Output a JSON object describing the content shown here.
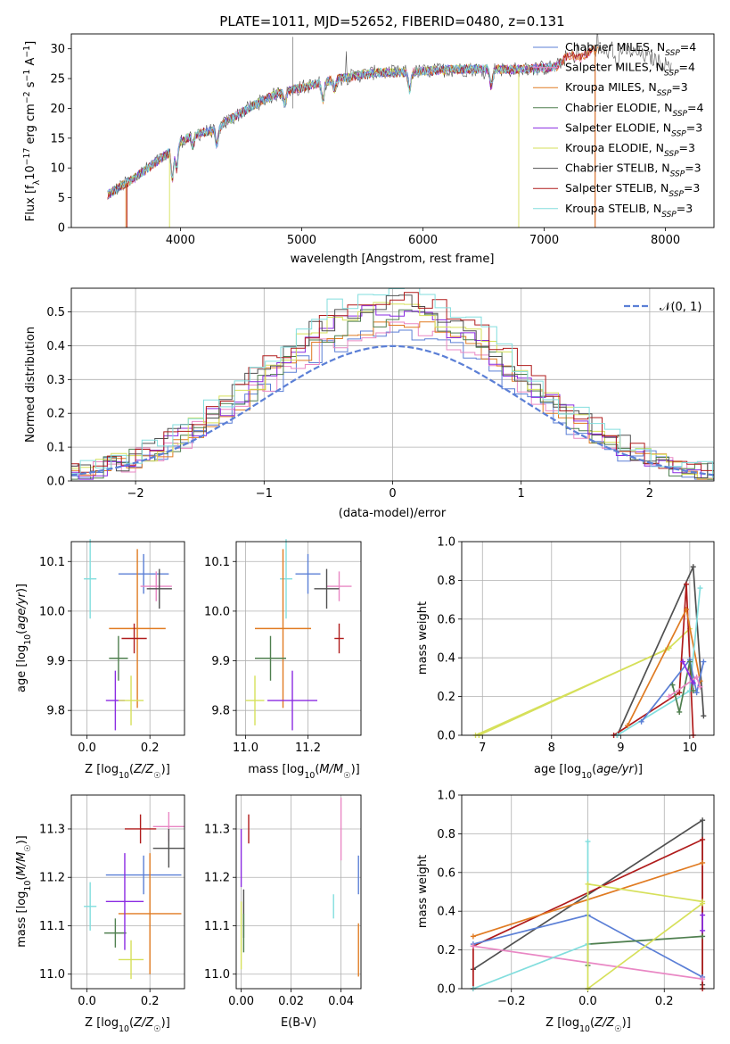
{
  "figure_title": "PLATE=1011, MJD=52652, FIBERID=0480, z=0.131",
  "colors": {
    "blue": "#5b7fd6",
    "orange": "#e07b22",
    "green": "#4f7f4f",
    "purple": "#8a2be2",
    "pink": "#e987c4",
    "yellow": "#d6e05a",
    "gray": "#505050",
    "red": "#b01c1c",
    "cyan": "#82dede"
  },
  "chart_data": [
    {
      "id": "spectrum",
      "type": "line",
      "title": "PLATE=1011, MJD=52652, FIBERID=0480, z=0.131",
      "xlabel": "wavelength [Angstrom, rest frame]",
      "ylabel": "Flux [f_λ 10^-17 erg cm^-2 s^-1 A^-1]",
      "xlim": [
        3100,
        8400
      ],
      "ylim": [
        0,
        32.5
      ],
      "xticks": [
        4000,
        5000,
        6000,
        7000,
        8000
      ],
      "yticks": [
        0,
        5,
        10,
        15,
        20,
        25,
        30
      ],
      "grid": false,
      "legend_position": "top-right",
      "legend": [
        {
          "label": "Chabrier MILES, N_SSP=4",
          "color": "blue"
        },
        {
          "label": "Salpeter MILES, N_SSP=4",
          "color": "pink"
        },
        {
          "label": "Kroupa MILES, N_SSP=3",
          "color": "orange"
        },
        {
          "label": "Chabrier ELODIE, N_SSP=4",
          "color": "green"
        },
        {
          "label": "Salpeter ELODIE, N_SSP=3",
          "color": "purple"
        },
        {
          "label": "Kroupa ELODIE, N_SSP=3",
          "color": "yellow"
        },
        {
          "label": "Chabrier STELIB, N_SSP=3",
          "color": "gray"
        },
        {
          "label": "Salpeter STELIB, N_SSP=3",
          "color": "red"
        },
        {
          "label": "Kroupa STELIB, N_SSP=3",
          "color": "cyan"
        }
      ],
      "continuum": [
        [
          3400,
          5.5
        ],
        [
          3500,
          6.8
        ],
        [
          3600,
          8
        ],
        [
          3700,
          9.5
        ],
        [
          3800,
          11
        ],
        [
          3900,
          12.5
        ],
        [
          4000,
          14.5
        ],
        [
          4100,
          15.5
        ],
        [
          4200,
          16
        ],
        [
          4300,
          16.5
        ],
        [
          4400,
          18
        ],
        [
          4600,
          20.5
        ],
        [
          4800,
          22.5
        ],
        [
          5000,
          23.5
        ],
        [
          5200,
          24.5
        ],
        [
          5400,
          25.3
        ],
        [
          5600,
          26
        ],
        [
          5800,
          26
        ],
        [
          6000,
          26.2
        ],
        [
          6200,
          26.5
        ],
        [
          6400,
          26.6
        ],
        [
          6600,
          26.6
        ],
        [
          6800,
          26.5
        ],
        [
          7000,
          26.8
        ],
        [
          7100,
          27
        ],
        [
          7200,
          29
        ],
        [
          7300,
          28.5
        ],
        [
          7400,
          29.8
        ],
        [
          7500,
          29.3
        ],
        [
          7600,
          30
        ],
        [
          7800,
          29
        ],
        [
          8000,
          27.5
        ],
        [
          8200,
          27
        ]
      ]
    },
    {
      "id": "residuals",
      "type": "histogram",
      "xlabel": "(data-model)/error",
      "ylabel": "Normed distribution",
      "xlim": [
        -2.5,
        2.5
      ],
      "ylim": [
        0,
        0.57
      ],
      "xticks": [
        -2,
        -1,
        0,
        1,
        2
      ],
      "yticks": [
        0.0,
        0.1,
        0.2,
        0.3,
        0.4,
        0.5
      ],
      "grid": true,
      "legend_position": "top-right",
      "reference_label": "𝒩(0, 1)",
      "reference_color": "blue"
    },
    {
      "id": "age_vs_Z",
      "type": "scatter",
      "xlabel": "Z [log10(Z/Z☉)]",
      "ylabel": "age  [log10(age/yr)]",
      "xlim": [
        -0.05,
        0.31
      ],
      "ylim": [
        9.75,
        10.14
      ],
      "xticks": [
        0.0,
        0.2
      ],
      "yticks": [
        9.8,
        9.9,
        10.0,
        10.1
      ],
      "grid": true,
      "points": [
        {
          "color": "cyan",
          "x": 0.01,
          "y": 10.065,
          "xerr": 0.02,
          "yerr": 0.08
        },
        {
          "color": "blue",
          "x": 0.18,
          "y": 10.075,
          "xerr": 0.08,
          "yerr": 0.04
        },
        {
          "color": "pink",
          "x": 0.22,
          "y": 10.05,
          "xerr": 0.05,
          "yerr": 0.03
        },
        {
          "color": "gray",
          "x": 0.23,
          "y": 10.045,
          "xerr": 0.04,
          "yerr": 0.04
        },
        {
          "color": "orange",
          "x": 0.16,
          "y": 9.965,
          "xerr": 0.09,
          "yerr": 0.16
        },
        {
          "color": "red",
          "x": 0.15,
          "y": 9.945,
          "xerr": 0.04,
          "yerr": 0.03
        },
        {
          "color": "green",
          "x": 0.1,
          "y": 9.905,
          "xerr": 0.03,
          "yerr": 0.045
        },
        {
          "color": "purple",
          "x": 0.09,
          "y": 9.82,
          "xerr": 0.03,
          "yerr": 0.06
        },
        {
          "color": "yellow",
          "x": 0.14,
          "y": 9.82,
          "xerr": 0.04,
          "yerr": 0.05
        }
      ]
    },
    {
      "id": "age_vs_mass",
      "type": "scatter",
      "xlabel": "mass [log10(M/M☉)]",
      "ylabel": "",
      "xlim": [
        10.97,
        11.37
      ],
      "ylim": [
        9.75,
        10.14
      ],
      "xticks": [
        11.0,
        11.2
      ],
      "yticks": [
        9.8,
        9.9,
        10.0,
        10.1
      ],
      "grid": true,
      "points": [
        {
          "color": "cyan",
          "x": 11.13,
          "y": 10.065,
          "xerr": 0.02,
          "yerr": 0.08
        },
        {
          "color": "blue",
          "x": 11.2,
          "y": 10.075,
          "xerr": 0.04,
          "yerr": 0.04
        },
        {
          "color": "pink",
          "x": 11.3,
          "y": 10.05,
          "xerr": 0.04,
          "yerr": 0.03
        },
        {
          "color": "gray",
          "x": 11.26,
          "y": 10.045,
          "xerr": 0.04,
          "yerr": 0.04
        },
        {
          "color": "orange",
          "x": 11.12,
          "y": 9.965,
          "xerr": 0.09,
          "yerr": 0.16
        },
        {
          "color": "red",
          "x": 11.3,
          "y": 9.945,
          "xerr": 0.015,
          "yerr": 0.03
        },
        {
          "color": "green",
          "x": 11.08,
          "y": 9.905,
          "xerr": 0.05,
          "yerr": 0.045
        },
        {
          "color": "purple",
          "x": 11.15,
          "y": 9.82,
          "xerr": 0.08,
          "yerr": 0.06
        },
        {
          "color": "yellow",
          "x": 11.03,
          "y": 9.82,
          "xerr": 0.03,
          "yerr": 0.05
        }
      ]
    },
    {
      "id": "weight_vs_age",
      "type": "line",
      "xlabel": "age  [log10(age/yr)]",
      "ylabel": "mass weight",
      "xlim": [
        6.7,
        10.35
      ],
      "ylim": [
        0,
        1
      ],
      "xticks": [
        7,
        8,
        9,
        10
      ],
      "yticks": [
        0.0,
        0.2,
        0.4,
        0.6,
        0.8,
        1.0
      ],
      "grid": true,
      "series": [
        {
          "color": "yellow",
          "points": [
            [
              6.95,
              0.0
            ],
            [
              9.7,
              0.45
            ],
            [
              10.0,
              0.55
            ]
          ]
        },
        {
          "color": "yellow",
          "points": [
            [
              6.9,
              0.0
            ],
            [
              9.65,
              0.44
            ]
          ]
        },
        {
          "color": "gray",
          "points": [
            [
              8.95,
              0.0
            ],
            [
              10.05,
              0.87
            ],
            [
              10.2,
              0.1
            ]
          ]
        },
        {
          "color": "red",
          "points": [
            [
              8.9,
              0.0
            ],
            [
              9.85,
              0.22
            ],
            [
              9.95,
              0.78
            ],
            [
              10.05,
              0.0
            ]
          ]
        },
        {
          "color": "orange",
          "points": [
            [
              9.1,
              0.05
            ],
            [
              9.95,
              0.65
            ],
            [
              10.15,
              0.28
            ]
          ]
        },
        {
          "color": "cyan",
          "points": [
            [
              8.95,
              0.0
            ],
            [
              10.0,
              0.23
            ],
            [
              10.15,
              0.76
            ]
          ]
        },
        {
          "color": "blue",
          "points": [
            [
              9.3,
              0.07
            ],
            [
              10.0,
              0.39
            ],
            [
              10.1,
              0.22
            ],
            [
              10.2,
              0.38
            ]
          ]
        },
        {
          "color": "green",
          "points": [
            [
              9.75,
              0.26
            ],
            [
              9.85,
              0.12
            ],
            [
              10.0,
              0.38
            ],
            [
              10.05,
              0.23
            ]
          ]
        },
        {
          "color": "pink",
          "points": [
            [
              9.7,
              0.2
            ],
            [
              10.1,
              0.3
            ],
            [
              10.15,
              0.25
            ]
          ]
        },
        {
          "color": "purple",
          "points": [
            [
              9.9,
              0.38
            ],
            [
              10.05,
              0.27
            ]
          ]
        }
      ]
    },
    {
      "id": "mass_vs_Z",
      "type": "scatter",
      "xlabel": "Z [log10(Z/Z☉)]",
      "ylabel": "mass [log10(M/M☉)]",
      "xlim": [
        -0.05,
        0.31
      ],
      "ylim": [
        10.97,
        11.37
      ],
      "xticks": [
        0.0,
        0.2
      ],
      "yticks": [
        11.0,
        11.1,
        11.2,
        11.3
      ],
      "grid": true,
      "points": [
        {
          "color": "cyan",
          "x": 0.01,
          "y": 11.14,
          "xerr": 0.02,
          "yerr": 0.05
        },
        {
          "color": "blue",
          "x": 0.18,
          "y": 11.205,
          "xerr": 0.12,
          "yerr": 0.04
        },
        {
          "color": "pink",
          "x": 0.26,
          "y": 11.305,
          "xerr": 0.05,
          "yerr": 0.03
        },
        {
          "color": "gray",
          "x": 0.26,
          "y": 11.26,
          "xerr": 0.05,
          "yerr": 0.04
        },
        {
          "color": "orange",
          "x": 0.2,
          "y": 11.125,
          "xerr": 0.1,
          "yerr": 0.125
        },
        {
          "color": "red",
          "x": 0.17,
          "y": 11.3,
          "xerr": 0.05,
          "yerr": 0.03
        },
        {
          "color": "green",
          "x": 0.09,
          "y": 11.085,
          "xerr": 0.035,
          "yerr": 0.03
        },
        {
          "color": "purple",
          "x": 0.12,
          "y": 11.15,
          "xerr": 0.06,
          "yerr": 0.1
        },
        {
          "color": "yellow",
          "x": 0.14,
          "y": 11.03,
          "xerr": 0.04,
          "yerr": 0.04
        }
      ]
    },
    {
      "id": "mass_vs_ebv",
      "type": "scatter",
      "xlabel": "E(B-V)",
      "ylabel": "",
      "xlim": [
        -0.002,
        0.048
      ],
      "ylim": [
        10.97,
        11.37
      ],
      "xticks": [
        0.0,
        0.02,
        0.04
      ],
      "yticks": [
        11.0,
        11.1,
        11.2,
        11.3
      ],
      "grid": true,
      "points": [
        {
          "color": "cyan",
          "x": 0.037,
          "y": 11.14,
          "xerr": 0,
          "yerr": 0.025
        },
        {
          "color": "blue",
          "x": 0.047,
          "y": 11.205,
          "xerr": 0,
          "yerr": 0.04
        },
        {
          "color": "pink",
          "x": 0.04,
          "y": 11.3,
          "xerr": 0,
          "yerr": 0.065
        },
        {
          "color": "gray",
          "x": 0.001,
          "y": 11.125,
          "xerr": 0,
          "yerr": 0.05
        },
        {
          "color": "orange",
          "x": 0.047,
          "y": 11.05,
          "xerr": 0,
          "yerr": 0.055
        },
        {
          "color": "red",
          "x": 0.003,
          "y": 11.3,
          "xerr": 0,
          "yerr": 0.03
        },
        {
          "color": "green",
          "x": 0.001,
          "y": 11.085,
          "xerr": 0,
          "yerr": 0.04
        },
        {
          "color": "purple",
          "x": 0.0,
          "y": 11.24,
          "xerr": 0,
          "yerr": 0.06
        },
        {
          "color": "yellow",
          "x": 0.0,
          "y": 11.08,
          "xerr": 0,
          "yerr": 0.07
        }
      ]
    },
    {
      "id": "weight_vs_Z",
      "type": "line",
      "xlabel": "Z [log10(Z/Z☉)]",
      "ylabel": "mass weight",
      "xlim": [
        -0.33,
        0.33
      ],
      "ylim": [
        0,
        1
      ],
      "xticks": [
        -0.2,
        0.0,
        0.2
      ],
      "yticks": [
        0.0,
        0.2,
        0.4,
        0.6,
        0.8,
        1.0
      ],
      "grid": true,
      "series": [
        {
          "color": "gray",
          "points": [
            [
              -0.3,
              0.1
            ],
            [
              0.3,
              0.87
            ],
            [
              0.3,
              0.02
            ]
          ]
        },
        {
          "color": "red",
          "points": [
            [
              -0.3,
              0.0
            ],
            [
              -0.3,
              0.22
            ],
            [
              0.3,
              0.77
            ],
            [
              0.3,
              0.0
            ]
          ]
        },
        {
          "color": "orange",
          "points": [
            [
              -0.3,
              0.27
            ],
            [
              0.3,
              0.65
            ]
          ]
        },
        {
          "color": "blue",
          "points": [
            [
              -0.3,
              0.23
            ],
            [
              0.0,
              0.38
            ],
            [
              0.3,
              0.06
            ]
          ]
        },
        {
          "color": "pink",
          "points": [
            [
              -0.3,
              0.22
            ],
            [
              0.3,
              0.05
            ]
          ]
        },
        {
          "color": "green",
          "points": [
            [
              0.0,
              0.12
            ],
            [
              0.0,
              0.23
            ],
            [
              0.3,
              0.27
            ]
          ]
        },
        {
          "color": "cyan",
          "points": [
            [
              -0.3,
              0.0
            ],
            [
              0.0,
              0.23
            ],
            [
              0.0,
              0.76
            ]
          ]
        },
        {
          "color": "yellow",
          "points": [
            [
              0.0,
              0.0
            ],
            [
              0.0,
              0.54
            ],
            [
              0.3,
              0.45
            ]
          ]
        },
        {
          "color": "yellow",
          "points": [
            [
              0.0,
              0.0
            ],
            [
              0.3,
              0.44
            ]
          ]
        },
        {
          "color": "purple",
          "points": [
            [
              0.3,
              0.3
            ],
            [
              0.3,
              0.38
            ]
          ]
        }
      ]
    }
  ]
}
